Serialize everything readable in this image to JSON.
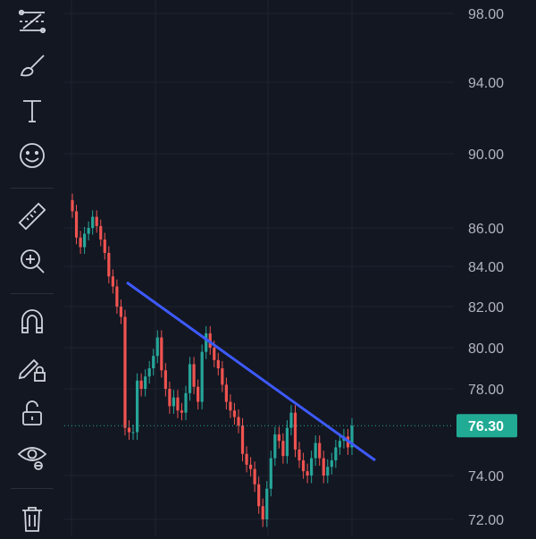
{
  "toolbar": {
    "tools": [
      {
        "icon": "trend-line-tools-icon"
      },
      {
        "icon": "brush-icon"
      },
      {
        "icon": "text-tool-icon"
      },
      {
        "icon": "emoji-icon"
      },
      {
        "icon": "ruler-icon"
      },
      {
        "icon": "zoom-in-icon"
      },
      {
        "icon": "magnet-icon"
      },
      {
        "icon": "lock-drawings-icon"
      },
      {
        "icon": "unlock-icon"
      },
      {
        "icon": "eye-icon"
      },
      {
        "icon": "trash-icon"
      }
    ]
  },
  "colors": {
    "background": "#131722",
    "grid": "#1f2330",
    "up": "#26a69a",
    "down": "#ef5350",
    "trendline": "#3d5afe",
    "current_price_bg": "#22ab94",
    "axis_text": "#b2b5be"
  },
  "price_axis": {
    "labels": [
      "98.00",
      "94.00",
      "90.00",
      "86.00",
      "84.00",
      "82.00",
      "80.00",
      "78.00",
      "74.00",
      "72.00"
    ],
    "current_price": "76.30"
  },
  "chart_data": {
    "type": "candlestick",
    "y_ticks": [
      98,
      94,
      90,
      86,
      84,
      82,
      80,
      78,
      74,
      72
    ],
    "current_price": 76.3,
    "trendline": {
      "from_price": 83.2,
      "to_price": 74.7
    },
    "closes": [
      86.9,
      85.5,
      85.0,
      85.7,
      86.0,
      86.6,
      86.1,
      85.4,
      84.7,
      83.5,
      83.0,
      82.0,
      81.5,
      76.2,
      76.0,
      76.0,
      78.4,
      78.0,
      78.6,
      79.0,
      79.6,
      80.5,
      78.9,
      78.0,
      77.2,
      77.6,
      77.0,
      76.9,
      77.8,
      79.2,
      78.1,
      77.4,
      79.8,
      80.7,
      80.0,
      79.4,
      79.0,
      78.2,
      77.4,
      77.0,
      76.7,
      76.3,
      75.0,
      74.5,
      74.3,
      73.6,
      72.6,
      72.0,
      73.4,
      74.8,
      75.9,
      75.6,
      74.9,
      76.2,
      76.9,
      75.2,
      74.7,
      74.2,
      74.0,
      74.8,
      75.5,
      74.8,
      74.0,
      74.4,
      74.7,
      75.3,
      75.6,
      75.8,
      75.3,
      76.3
    ]
  }
}
